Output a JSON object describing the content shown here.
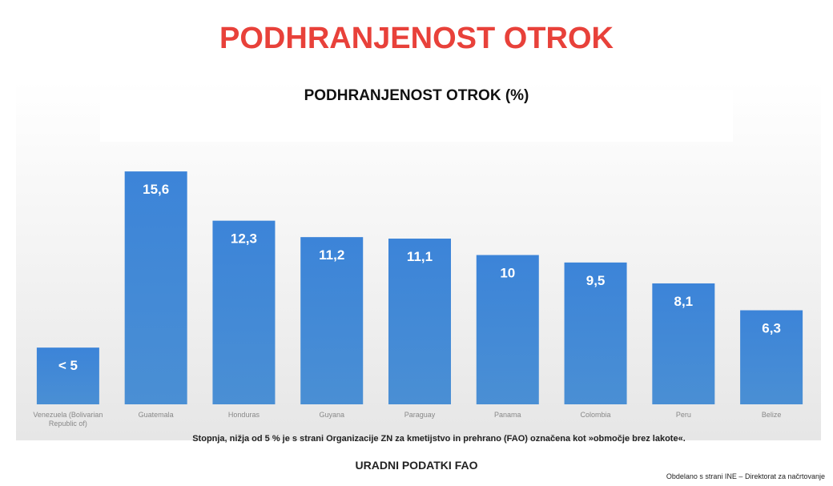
{
  "heading": "PODHRANJENOST OTROK",
  "chart_data": {
    "type": "bar",
    "title": "PODHRANJENOST OTROK (%)",
    "categories": [
      "Venezuela (Bolivarian Republic of)",
      "Guatemala",
      "Honduras",
      "Guyana",
      "Paraguay",
      "Panama",
      "Colombia",
      "Peru",
      "Belize"
    ],
    "values": [
      3.8,
      15.6,
      12.3,
      11.2,
      11.1,
      10,
      9.5,
      8.1,
      6.3
    ],
    "value_labels": [
      "< 5",
      "15,6",
      "12,3",
      "11,2",
      "11,1",
      "10",
      "9,5",
      "8,1",
      "6,3"
    ],
    "color": "#3f86d6",
    "ylim": [
      0,
      17
    ],
    "note": "Stopnja, nižja od 5 % je s strani Organizacije ZN za kmetijstvo in prehrano (FAO) označena kot »območje brez lakote«."
  },
  "source": "URADNI PODATKI FAO",
  "credit": "Obdelano s strani INE – Direktorat za načrtovanje"
}
